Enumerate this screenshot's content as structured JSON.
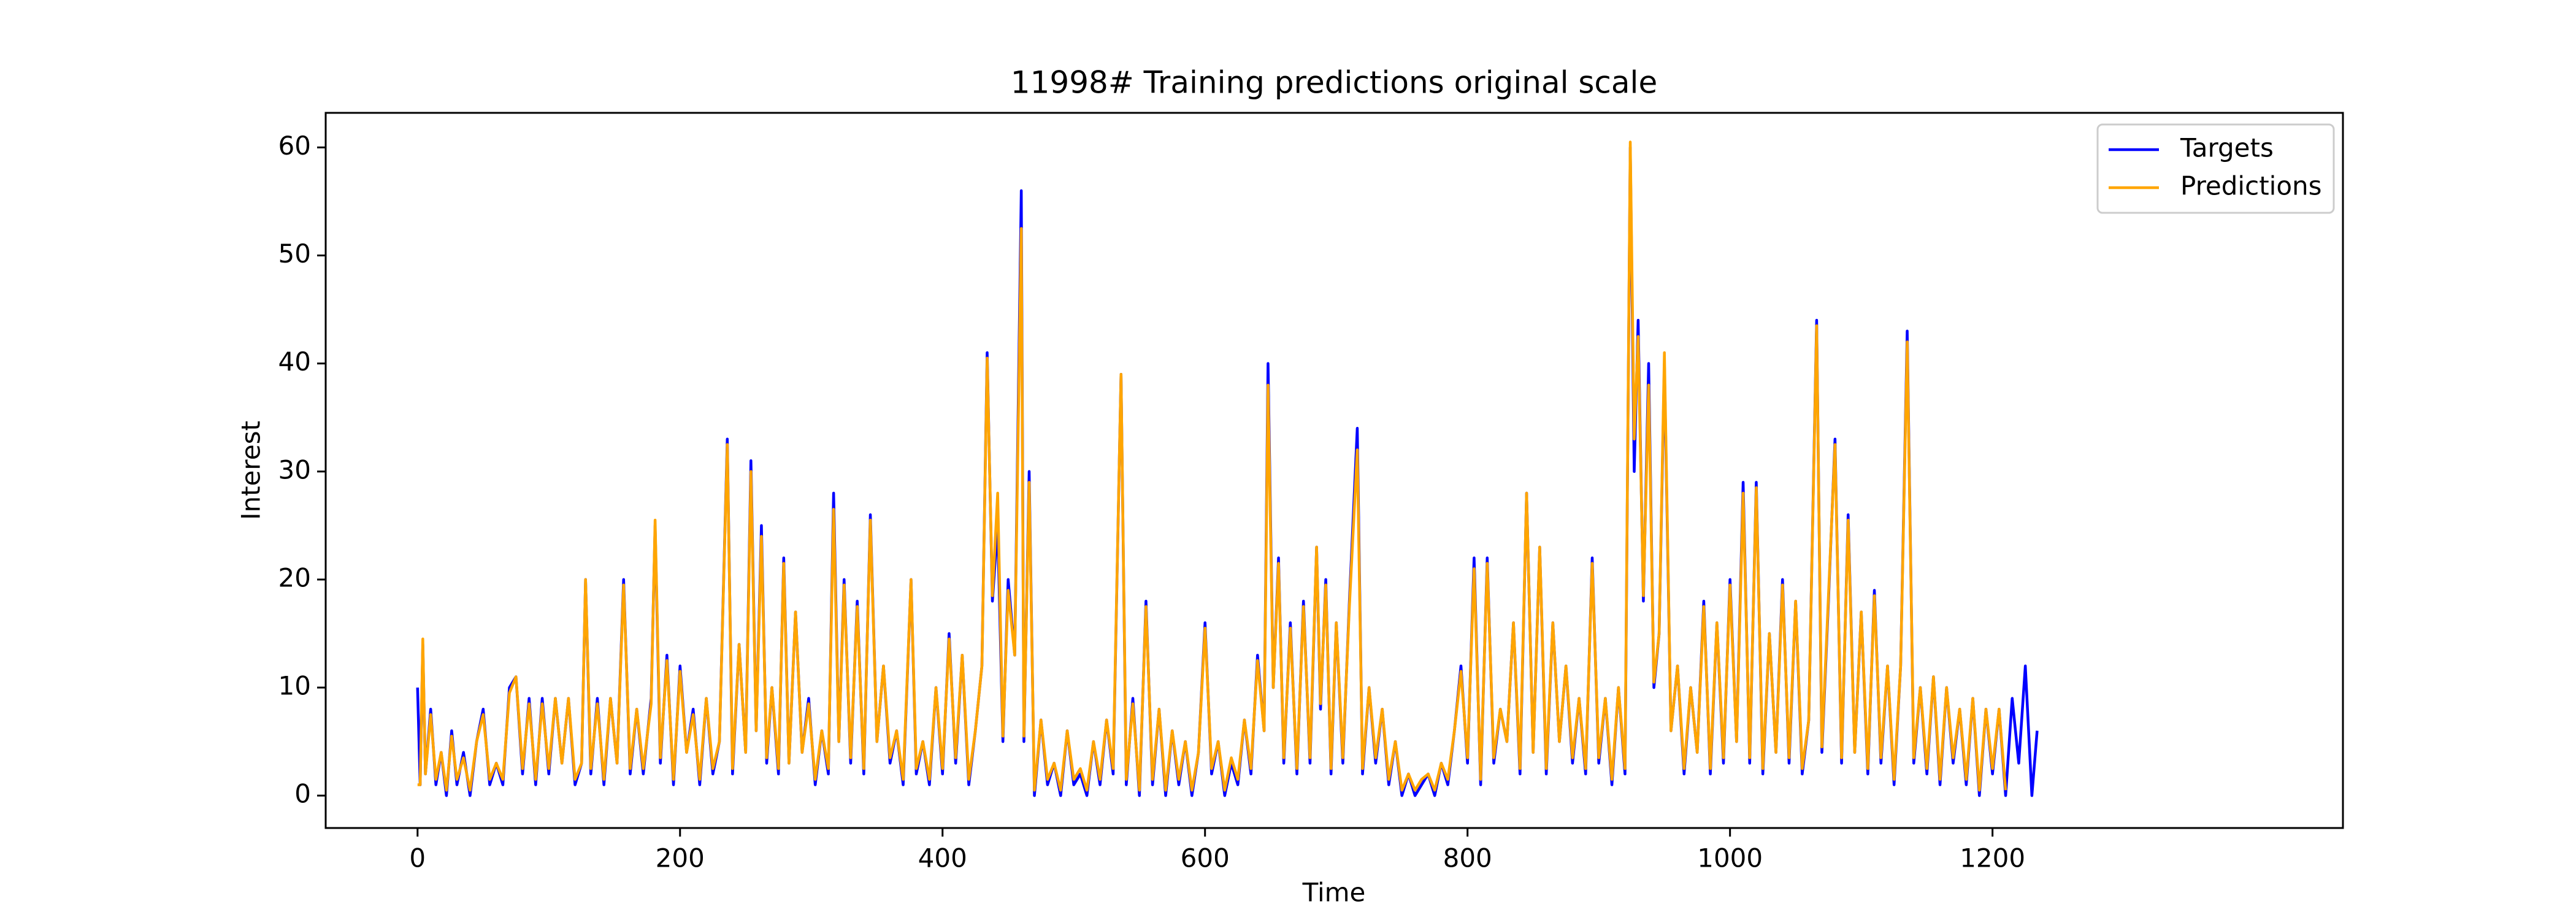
{
  "chart_data": {
    "type": "line",
    "title": "11998# Training predictions original scale",
    "x_label": "Time",
    "y_label": "Interest",
    "xlim": [
      -70,
      1467
    ],
    "ylim": [
      -3,
      63.2
    ],
    "xticks": [
      0,
      200,
      400,
      600,
      800,
      1000,
      1200
    ],
    "yticks": [
      0,
      10,
      20,
      30,
      40,
      50,
      60
    ],
    "legend": "upper right",
    "x": [
      0,
      2,
      4,
      6,
      10,
      14,
      18,
      22,
      26,
      30,
      35,
      40,
      45,
      50,
      55,
      60,
      65,
      70,
      75,
      80,
      85,
      90,
      95,
      100,
      105,
      110,
      115,
      120,
      125,
      128,
      132,
      137,
      142,
      147,
      152,
      157,
      162,
      167,
      172,
      178,
      181,
      185,
      190,
      195,
      200,
      205,
      210,
      215,
      220,
      225,
      230,
      236,
      240,
      245,
      250,
      254,
      258,
      262,
      266,
      270,
      275,
      279,
      283,
      288,
      293,
      298,
      303,
      308,
      313,
      317,
      321,
      325,
      330,
      335,
      340,
      345,
      350,
      355,
      360,
      365,
      370,
      376,
      380,
      385,
      390,
      395,
      400,
      405,
      410,
      415,
      420,
      425,
      430,
      434,
      438,
      442,
      446,
      450,
      455,
      460,
      462,
      466,
      470,
      475,
      480,
      485,
      490,
      495,
      500,
      505,
      510,
      515,
      520,
      525,
      530,
      536,
      540,
      545,
      550,
      555,
      560,
      565,
      570,
      575,
      580,
      585,
      590,
      595,
      600,
      605,
      610,
      615,
      620,
      625,
      630,
      635,
      640,
      645,
      648,
      652,
      656,
      660,
      665,
      670,
      675,
      680,
      685,
      688,
      692,
      696,
      700,
      705,
      710,
      716,
      720,
      725,
      730,
      735,
      740,
      745,
      750,
      755,
      760,
      765,
      770,
      775,
      780,
      785,
      790,
      795,
      800,
      805,
      810,
      815,
      820,
      825,
      830,
      835,
      840,
      845,
      850,
      855,
      860,
      865,
      870,
      875,
      880,
      885,
      890,
      895,
      900,
      905,
      910,
      915,
      920,
      924,
      927,
      930,
      934,
      938,
      942,
      946,
      950,
      955,
      960,
      965,
      970,
      975,
      980,
      985,
      990,
      995,
      1000,
      1005,
      1010,
      1015,
      1020,
      1025,
      1030,
      1035,
      1040,
      1045,
      1050,
      1055,
      1060,
      1066,
      1070,
      1075,
      1080,
      1085,
      1090,
      1095,
      1100,
      1105,
      1110,
      1115,
      1120,
      1125,
      1130,
      1135,
      1140,
      1145,
      1150,
      1155,
      1160,
      1165,
      1170,
      1175,
      1180,
      1185,
      1190,
      1195,
      1200,
      1205,
      1210,
      1215,
      1220,
      1225,
      1230,
      1234
    ],
    "series": [
      {
        "name": "Targets",
        "color": "#0000ff",
        "values": [
          10,
          1,
          14,
          2,
          8,
          1,
          4,
          0,
          6,
          1,
          4,
          0,
          5,
          8,
          1,
          3,
          1,
          10,
          11,
          2,
          9,
          1,
          9,
          2,
          9,
          3,
          9,
          1,
          3,
          20,
          2,
          9,
          1,
          9,
          3,
          20,
          2,
          8,
          2,
          9,
          25,
          3,
          13,
          1,
          12,
          4,
          8,
          1,
          9,
          2,
          5,
          33,
          2,
          14,
          4,
          31,
          6,
          25,
          3,
          10,
          2,
          22,
          3,
          17,
          4,
          9,
          1,
          6,
          2,
          28,
          5,
          20,
          3,
          18,
          2,
          26,
          5,
          12,
          3,
          6,
          1,
          20,
          2,
          5,
          1,
          10,
          2,
          15,
          3,
          13,
          1,
          6,
          12,
          41,
          18,
          25,
          5,
          20,
          13,
          56,
          5,
          30,
          0,
          7,
          1,
          3,
          0,
          6,
          1,
          2,
          0,
          5,
          1,
          7,
          2,
          39,
          1,
          9,
          0,
          18,
          1,
          8,
          0,
          6,
          1,
          5,
          0,
          4,
          16,
          2,
          5,
          0,
          3,
          1,
          7,
          2,
          13,
          6,
          40,
          10,
          22,
          3,
          16,
          2,
          18,
          3,
          23,
          8,
          20,
          2,
          16,
          3,
          18,
          34,
          2,
          10,
          3,
          8,
          1,
          5,
          0,
          2,
          0,
          1,
          2,
          0,
          3,
          1,
          6,
          12,
          3,
          22,
          1,
          22,
          3,
          8,
          5,
          16,
          2,
          28,
          4,
          23,
          2,
          16,
          5,
          12,
          3,
          9,
          2,
          22,
          3,
          9,
          1,
          10,
          2,
          60,
          30,
          44,
          18,
          40,
          10,
          15,
          40,
          6,
          12,
          2,
          10,
          4,
          18,
          2,
          16,
          3,
          20,
          5,
          29,
          3,
          29,
          2,
          15,
          4,
          20,
          3,
          18,
          2,
          7,
          44,
          4,
          18,
          33,
          3,
          26,
          4,
          17,
          2,
          19,
          3,
          12,
          1,
          12,
          43,
          3,
          10,
          2,
          11,
          1,
          10,
          3,
          8,
          1,
          9,
          0,
          8,
          2,
          8,
          0,
          9,
          3,
          12,
          0,
          6
        ]
      },
      {
        "name": "Predictions",
        "color": "#ffa500",
        "values": [
          1,
          1,
          14.5,
          2,
          7.5,
          1.5,
          4,
          0.5,
          5.5,
          1.5,
          3.5,
          0.5,
          5,
          7.5,
          1.5,
          3,
          1.5,
          9.5,
          11,
          2.5,
          8.5,
          1.5,
          8.5,
          2.5,
          9,
          3,
          9,
          1.5,
          3,
          20,
          2.5,
          8.5,
          1.5,
          9,
          3,
          19.5,
          2.5,
          8,
          2.5,
          8.5,
          25.5,
          3.5,
          12.5,
          1.5,
          11.5,
          4,
          7.5,
          1.5,
          9,
          2.5,
          5,
          32.5,
          2.5,
          14,
          4,
          30,
          6,
          24,
          3.5,
          10,
          2.5,
          21.5,
          3,
          17,
          4,
          8.5,
          1.5,
          6,
          2.5,
          26.5,
          5,
          19.5,
          3.5,
          17.5,
          2.5,
          25.5,
          5,
          12,
          3.5,
          6,
          1.5,
          20,
          2.5,
          5,
          1.5,
          10,
          2.5,
          14.5,
          3.5,
          13,
          1.5,
          6,
          12,
          40.5,
          18.5,
          28,
          5.5,
          19,
          13,
          52.5,
          5.5,
          29,
          0.5,
          7,
          1.5,
          3,
          0.5,
          6,
          1.5,
          2.5,
          0.5,
          5,
          1.5,
          7,
          2.5,
          39,
          1.5,
          8.5,
          0.5,
          17.5,
          1.5,
          8,
          0.5,
          6,
          1.5,
          5,
          0.5,
          4,
          15.5,
          2.5,
          5,
          0.5,
          3.5,
          1.5,
          7,
          2.5,
          12.5,
          6,
          38,
          10,
          21.5,
          3.5,
          15.5,
          2.5,
          17.5,
          3.5,
          23,
          8.5,
          19.5,
          2.5,
          16,
          3.5,
          17.5,
          32,
          2.5,
          10,
          3.5,
          8,
          1.5,
          5,
          0.5,
          2,
          0.5,
          1.5,
          2,
          0.5,
          3,
          1.5,
          6,
          11.5,
          3.5,
          21,
          1.5,
          21.5,
          3.5,
          8,
          5,
          16,
          2.5,
          28,
          4,
          23,
          2.5,
          16,
          5,
          12,
          3.5,
          9,
          2.5,
          21.5,
          3.5,
          9,
          1.5,
          10,
          2.5,
          60.5,
          33,
          42.5,
          18.5,
          38,
          10.5,
          15,
          41,
          6,
          12,
          2.5,
          10,
          4,
          17.5,
          2.5,
          16,
          3.5,
          19.5,
          5,
          28,
          3.5,
          28.5,
          2.5,
          15,
          4,
          19.5,
          3.5,
          18,
          2.5,
          7,
          43.5,
          4.5,
          18.5,
          32.5,
          3.5,
          25.5,
          4,
          17,
          2.5,
          18.5,
          3.5,
          12,
          1.5,
          12,
          42,
          3.5,
          10,
          2.5,
          11,
          1.5,
          10,
          3.5,
          8,
          1.5,
          9,
          0.5,
          8,
          2.5,
          8,
          0.5,
          null,
          null,
          null,
          null,
          null
        ]
      }
    ]
  }
}
